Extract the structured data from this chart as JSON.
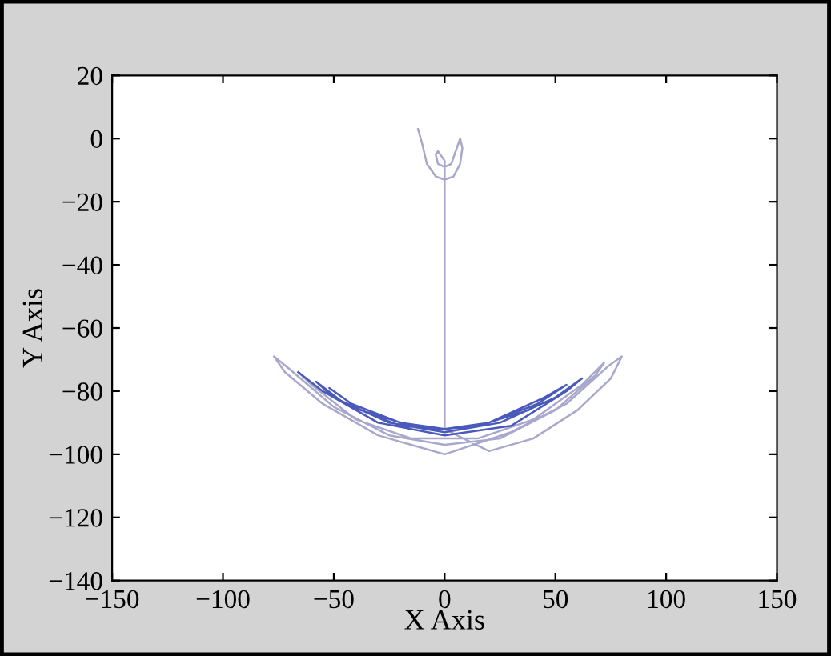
{
  "chart_data": {
    "type": "line",
    "xlabel": "X Axis",
    "ylabel": "Y Axis",
    "xlim": [
      -150,
      150
    ],
    "ylim": [
      -140,
      20
    ],
    "xticks": [
      -150,
      -100,
      -50,
      0,
      50,
      100,
      150
    ],
    "yticks": [
      -140,
      -120,
      -100,
      -80,
      -60,
      -40,
      -20,
      0,
      20
    ],
    "grid": false,
    "marker": "none",
    "line_style": "solid",
    "series": [
      {
        "color": "#a8a8cc",
        "x": [
          -12,
          -10,
          -8,
          -4,
          0,
          4,
          7,
          8,
          7,
          5,
          3,
          0,
          -3,
          -4,
          -3,
          0,
          0,
          0,
          0,
          0,
          20,
          40,
          60,
          75,
          80,
          74,
          55,
          30,
          0,
          -30,
          -55,
          -72,
          -77,
          -70,
          -50,
          -25,
          0,
          25,
          50,
          68,
          72,
          62,
          40,
          15,
          -15,
          -40,
          -60,
          -66
        ],
        "values": [
          3,
          -2,
          -8,
          -12,
          -13,
          -12,
          -8,
          -3,
          0,
          -4,
          -8,
          -9,
          -8,
          -5,
          -4,
          -7,
          -10,
          -30,
          -60,
          -92,
          -99,
          -95,
          -86,
          -76,
          -69,
          -72,
          -84,
          -93,
          -100,
          -94,
          -84,
          -74,
          -69,
          -73,
          -85,
          -94,
          -97,
          -95,
          -86,
          -75,
          -71,
          -78,
          -89,
          -95,
          -95,
          -89,
          -78,
          -74
        ]
      },
      {
        "color": "#4a5abb",
        "x": [
          -66,
          -55,
          -30,
          0,
          30,
          55,
          62,
          50,
          25,
          0,
          -25,
          -50,
          -58,
          -45,
          -20,
          0,
          20,
          45,
          55,
          42,
          20,
          0,
          -20,
          -42,
          -52,
          -38,
          -15,
          0,
          15,
          38,
          48
        ],
        "values": [
          -74,
          -80,
          -90,
          -94,
          -91,
          -80,
          -76,
          -82,
          -90,
          -93,
          -90,
          -82,
          -77,
          -84,
          -91,
          -92,
          -90,
          -82,
          -78,
          -84,
          -90,
          -92,
          -90,
          -84,
          -79,
          -86,
          -91,
          -92,
          -91,
          -86,
          -81
        ]
      }
    ]
  }
}
